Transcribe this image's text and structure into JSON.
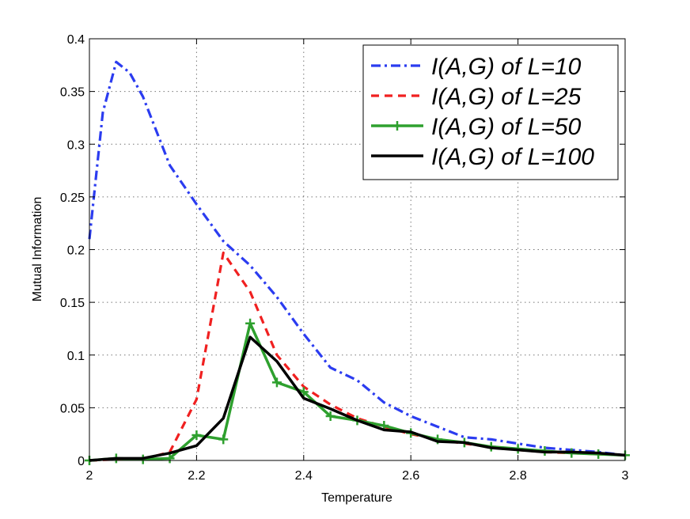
{
  "chart_data": {
    "type": "line",
    "title": "",
    "xlabel": "Temperature",
    "ylabel": "Mutual Information",
    "xlim": [
      2,
      3
    ],
    "ylim": [
      0,
      0.4
    ],
    "xticks": [
      "2",
      "2.2",
      "2.4",
      "2.6",
      "2.8",
      "3"
    ],
    "xtick_values": [
      2,
      2.2,
      2.4,
      2.6,
      2.8,
      3
    ],
    "yticks": [
      "0",
      "0.05",
      "0.1",
      "0.15",
      "0.2",
      "0.25",
      "0.3",
      "0.35",
      "0.4"
    ],
    "ytick_values": [
      0,
      0.05,
      0.1,
      0.15,
      0.2,
      0.25,
      0.3,
      0.35,
      0.4
    ],
    "grid": true,
    "legend_position": "top-right",
    "series": [
      {
        "name": "I(A,G) of L=10",
        "color": "#2b3cf0",
        "style": "dashdot",
        "marker": "none",
        "x": [
          2.0,
          2.025,
          2.05,
          2.075,
          2.1,
          2.15,
          2.2,
          2.25,
          2.3,
          2.35,
          2.4,
          2.45,
          2.5,
          2.55,
          2.6,
          2.65,
          2.7,
          2.75,
          2.8,
          2.85,
          2.9,
          2.95,
          3.0
        ],
        "y": [
          0.21,
          0.33,
          0.378,
          0.368,
          0.345,
          0.28,
          0.243,
          0.208,
          0.185,
          0.155,
          0.12,
          0.088,
          0.076,
          0.055,
          0.042,
          0.032,
          0.022,
          0.02,
          0.016,
          0.012,
          0.01,
          0.008,
          0.005
        ]
      },
      {
        "name": "I(A,G) of L=25",
        "color": "#f02020",
        "style": "dashed",
        "marker": "none",
        "x": [
          2.0,
          2.05,
          2.1,
          2.15,
          2.2,
          2.25,
          2.3,
          2.35,
          2.4,
          2.45,
          2.5,
          2.55,
          2.6,
          2.65,
          2.7,
          2.75,
          2.8,
          2.85,
          2.9,
          2.95,
          3.0
        ],
        "y": [
          0.0,
          0.001,
          0.001,
          0.008,
          0.058,
          0.197,
          0.16,
          0.1,
          0.07,
          0.053,
          0.04,
          0.032,
          0.025,
          0.02,
          0.016,
          0.013,
          0.01,
          0.008,
          0.007,
          0.006,
          0.005
        ]
      },
      {
        "name": "I(A,G) of L=50",
        "color": "#2ea02e",
        "style": "solid",
        "marker": "plus",
        "x": [
          2.0,
          2.05,
          2.1,
          2.15,
          2.2,
          2.25,
          2.3,
          2.35,
          2.4,
          2.45,
          2.5,
          2.55,
          2.6,
          2.65,
          2.7,
          2.75,
          2.8,
          2.85,
          2.9,
          2.95,
          3.0
        ],
        "y": [
          0.0,
          0.002,
          0.001,
          0.002,
          0.024,
          0.02,
          0.13,
          0.074,
          0.065,
          0.042,
          0.038,
          0.033,
          0.026,
          0.02,
          0.017,
          0.013,
          0.011,
          0.009,
          0.007,
          0.006,
          0.005
        ]
      },
      {
        "name": "I(A,G) of L=100",
        "color": "#000000",
        "style": "solid",
        "marker": "none",
        "x": [
          2.0,
          2.05,
          2.1,
          2.15,
          2.2,
          2.25,
          2.3,
          2.35,
          2.4,
          2.45,
          2.5,
          2.55,
          2.6,
          2.65,
          2.7,
          2.75,
          2.8,
          2.85,
          2.9,
          2.95,
          3.0
        ],
        "y": [
          0.0,
          0.002,
          0.002,
          0.007,
          0.014,
          0.04,
          0.117,
          0.094,
          0.059,
          0.049,
          0.038,
          0.029,
          0.027,
          0.018,
          0.017,
          0.012,
          0.01,
          0.008,
          0.008,
          0.007,
          0.005
        ]
      }
    ]
  }
}
